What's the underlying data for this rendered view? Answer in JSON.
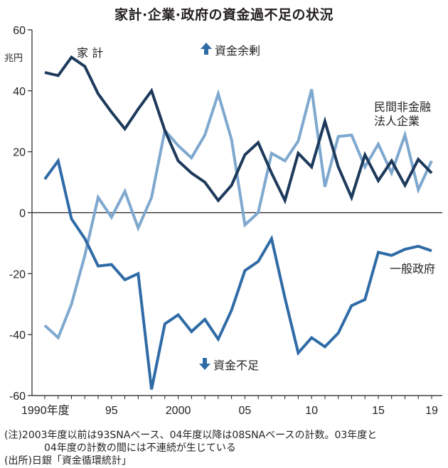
{
  "title": "家計·企業·政府の資金過不足の状況",
  "notes": {
    "note_line1": "(注)2003年度以前は93SNAベース、04年度以降は08SNAベースの計数。03年度と",
    "note_line2": "04年度の計数の間には不連続が生じている",
    "source": "(出所)日銀「資金循環統計」"
  },
  "colors": {
    "household": "#1d3a5c",
    "corporate": "#7fa8cf",
    "government": "#2f6ba6",
    "axis": "#231f20",
    "arrow": "#2f6ba6"
  },
  "chart_data": {
    "type": "line",
    "title": "家計·企業·政府の資金過不足の状況",
    "ylabel": "兆円",
    "ylim": [
      -60,
      60
    ],
    "yticks": [
      -60,
      -40,
      -20,
      0,
      20,
      40,
      60
    ],
    "xlim": [
      1990,
      2019
    ],
    "xticks": [
      {
        "x": 1990,
        "label": "1990年度"
      },
      {
        "x": 1995,
        "label": "95"
      },
      {
        "x": 2000,
        "label": "2000"
      },
      {
        "x": 2005,
        "label": "05"
      },
      {
        "x": 2010,
        "label": "10"
      },
      {
        "x": 2015,
        "label": "15"
      },
      {
        "x": 2019,
        "label": "19"
      }
    ],
    "x": [
      1990,
      1991,
      1992,
      1993,
      1994,
      1995,
      1996,
      1997,
      1998,
      1999,
      2000,
      2001,
      2002,
      2003,
      2004,
      2005,
      2006,
      2007,
      2008,
      2009,
      2010,
      2011,
      2012,
      2013,
      2014,
      2015,
      2016,
      2017,
      2018,
      2019
    ],
    "series": [
      {
        "name": "家 計",
        "key": "household",
        "values": [
          46,
          45,
          51,
          48,
          39,
          33,
          27.5,
          34,
          40,
          27,
          17,
          13,
          10,
          4,
          9,
          19,
          23,
          13,
          4,
          19.5,
          15,
          30,
          15,
          5,
          19,
          10.5,
          17,
          9,
          17.5,
          13
        ]
      },
      {
        "name": "民間非金融法人企業",
        "name_lines": [
          "民間非金融",
          "法人企業"
        ],
        "key": "corporate",
        "values": [
          -37,
          -41,
          -30,
          -14,
          5,
          -1.5,
          7,
          -5,
          5,
          27,
          22,
          18,
          25.5,
          39,
          24,
          -4,
          0,
          19.5,
          17,
          23.5,
          40.5,
          8.5,
          25,
          25.5,
          15,
          22.5,
          13,
          25.5,
          7.5,
          17
        ]
      },
      {
        "name": "一般政府",
        "key": "government",
        "values": [
          11,
          17,
          -2,
          -8.5,
          -17.5,
          -17,
          -22,
          -20,
          -58,
          -36.5,
          -33.5,
          -39,
          -35,
          -41.5,
          -32,
          -19,
          -16,
          -8.5,
          -28,
          -46,
          -41,
          -44,
          -39.5,
          -30.5,
          -28.5,
          -13,
          -14,
          -12,
          -11,
          -12.5
        ]
      }
    ],
    "annotations": {
      "surplus": "資金余剰",
      "deficit": "資金不足"
    }
  }
}
